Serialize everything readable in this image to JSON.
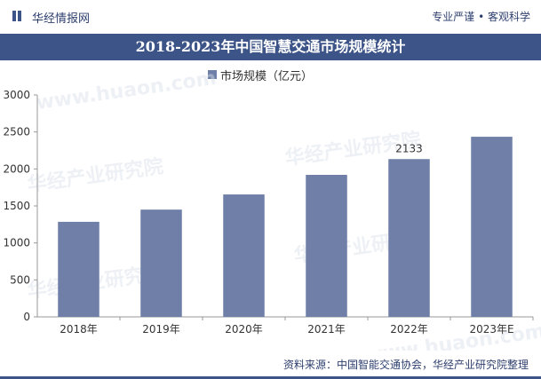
{
  "header": {
    "brand": "华经情报网",
    "tagline": "专业严谨 • 客观科学"
  },
  "footer": {
    "source": "资料来源：中国智能交通协会，华经产业研究院整理"
  },
  "watermark": {
    "text_cn": "华经产业研究院",
    "text_url": "www.huaon.com"
  },
  "colors": {
    "bar": "#6f7fa8",
    "title_bg": "#3d5488",
    "brand": "#2e3f6e"
  },
  "chart_data": {
    "type": "bar",
    "title": "2018-2023年中国智慧交通市场规模统计",
    "categories": [
      "2018年",
      "2019年",
      "2020年",
      "2021年",
      "2022年",
      "2023年E"
    ],
    "series": [
      {
        "name": "市场规模（亿元）",
        "values": [
          1285,
          1450,
          1655,
          1920,
          2133,
          2435
        ]
      }
    ],
    "data_labels": [
      null,
      null,
      null,
      null,
      "2133",
      null
    ],
    "ylim": [
      0,
      3000
    ],
    "yticks": [
      0,
      500,
      1000,
      1500,
      2000,
      2500,
      3000
    ],
    "grid": false,
    "legend_position": "top-center"
  }
}
